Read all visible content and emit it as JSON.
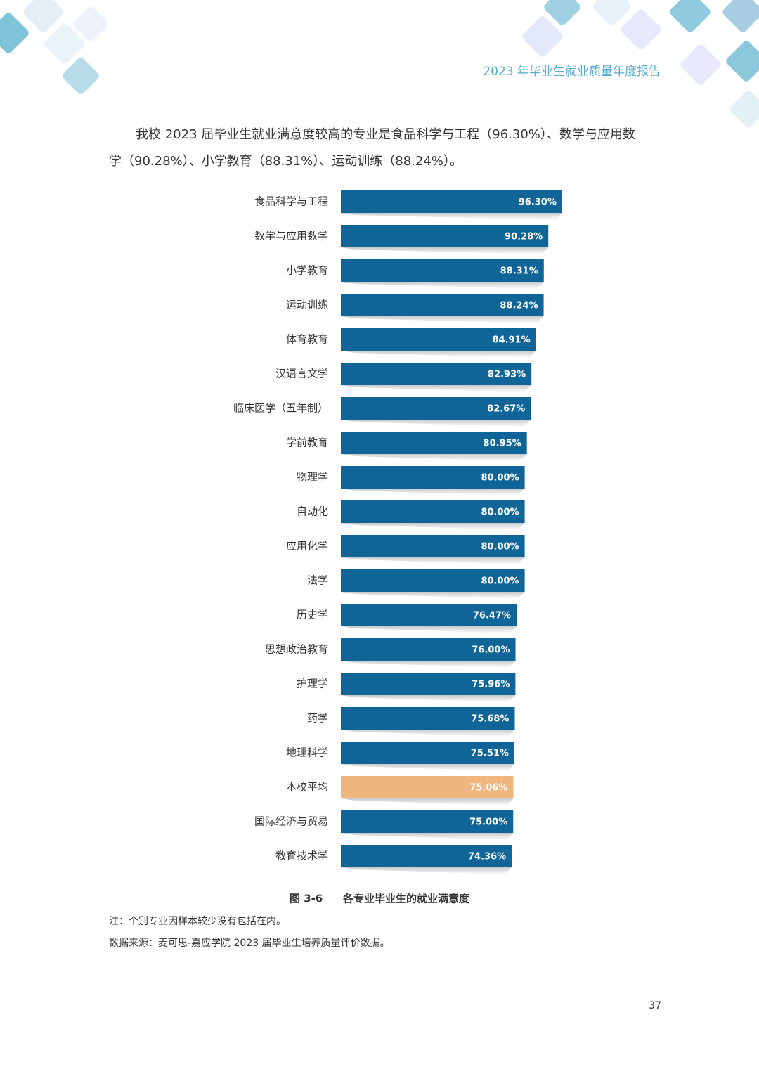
{
  "header": {
    "title": "2023 年毕业生就业质量年度报告"
  },
  "paragraph": {
    "lines": [
      "我校 2023 届毕业生就业满意度较高的专业是食品科学与工程（96.30%）、数学与应用数",
      "学（90.28%）、小学教育（88.31%）、运动训练（88.24%）。"
    ]
  },
  "chart_data": {
    "type": "hbar",
    "figure_number": "图 3-6",
    "title": "各专业毕业生的就业满意度",
    "categories": [
      "食品科学与工程",
      "数学与应用数学",
      "小学教育",
      "运动训练",
      "体育教育",
      "汉语言文学",
      "临床医学（五年制）",
      "学前教育",
      "物理学",
      "自动化",
      "应用化学",
      "法学",
      "历史学",
      "思想政治教育",
      "护理学",
      "药学",
      "地理科学",
      "本校平均",
      "国际经济与贸易",
      "教育技术学"
    ],
    "values": [
      96.3,
      90.28,
      88.31,
      88.24,
      84.91,
      82.93,
      82.67,
      80.95,
      80.0,
      80.0,
      80.0,
      80.0,
      76.47,
      76.0,
      75.96,
      75.68,
      75.51,
      75.06,
      75.0,
      74.36
    ],
    "value_labels": [
      "96.30%",
      "90.28%",
      "88.31%",
      "88.24%",
      "84.91%",
      "82.93%",
      "82.67%",
      "80.95%",
      "80.00%",
      "80.00%",
      "80.00%",
      "80.00%",
      "76.47%",
      "76.00%",
      "75.96%",
      "75.68%",
      "75.51%",
      "75.06%",
      "75.00%",
      "74.36%"
    ],
    "colors": [
      "#0f6498",
      "#0f6498",
      "#0f6498",
      "#0f6498",
      "#0f6498",
      "#0f6498",
      "#0f6498",
      "#0f6498",
      "#0f6498",
      "#0f6498",
      "#0f6498",
      "#0f6498",
      "#0f6498",
      "#0f6498",
      "#0f6498",
      "#0f6498",
      "#0f6498",
      "#f0b67f",
      "#0f6498",
      "#0f6498"
    ]
  },
  "notes": [
    "注：个别专业因样本较少没有包括在内。",
    "数据来源：麦可思-嘉应学院 2023 届毕业生培养质量评价数据。"
  ],
  "page_number": "37"
}
